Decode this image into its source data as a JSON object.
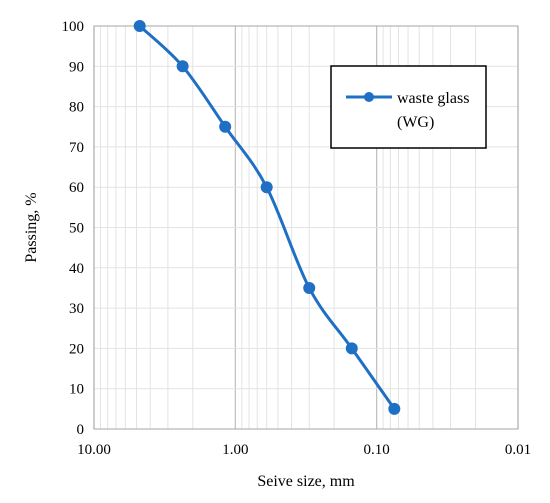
{
  "chart_data": {
    "type": "line",
    "xscale": "log",
    "xreversed": true,
    "xlim": [
      10,
      0.01
    ],
    "ylim": [
      0,
      100
    ],
    "xticks": [
      "10.00",
      "1.00",
      "0.10",
      "0.01"
    ],
    "yticks": [
      "0",
      "10",
      "20",
      "30",
      "40",
      "50",
      "60",
      "70",
      "80",
      "90",
      "100"
    ],
    "xlabel": "Seive size, mm",
    "ylabel": "Passing, %",
    "grid": true,
    "legend_position": "top-right",
    "legend_line1": "waste glass",
    "legend_line2": "(WG)",
    "series": [
      {
        "name": "waste glass (WG)",
        "color": "#1f6fc5",
        "x": [
          4.75,
          2.36,
          1.18,
          0.6,
          0.3,
          0.15,
          0.075
        ],
        "y": [
          100,
          90,
          75,
          60,
          35,
          20,
          5
        ]
      }
    ]
  }
}
